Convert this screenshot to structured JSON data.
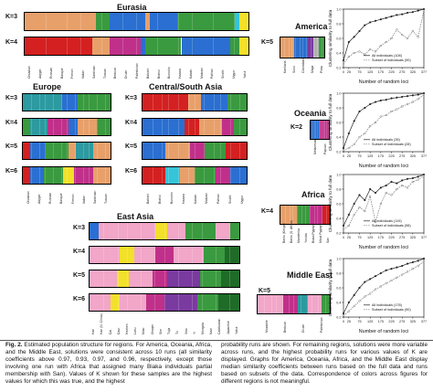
{
  "colors": {
    "orange": "#e8a06a",
    "blue": "#2a6fd1",
    "green": "#3a9a3f",
    "magenta": "#c0308a",
    "red": "#d42020",
    "yellow": "#f2e02a",
    "cyan": "#35c4d8",
    "pink": "#f2a6c8",
    "purple": "#7a3aa0",
    "darkgreen": "#1f6b28",
    "teal": "#2c9aa0",
    "navy": "#224488",
    "grey": "#b0b0b0"
  },
  "eurasia": {
    "title": "Eurasia",
    "k_labels": [
      "K=3",
      "K=4"
    ],
    "populations": [
      "Orcadian",
      "Adygei",
      "Russian",
      "Basque",
      "French",
      "Italian",
      "Sardinian",
      "Tuscan",
      "Bedouin",
      "Druze",
      "Palestinian",
      "Balochi",
      "Brahui",
      "Burusho",
      "Hazara",
      "Kalash",
      "Makrani",
      "Pathan",
      "Sindhi",
      "Uygur",
      "Yakut"
    ]
  },
  "europe": {
    "title": "Europe",
    "k_labels": [
      "K=3",
      "K=4",
      "K=5",
      "K=6"
    ],
    "populations": [
      "Orcadian",
      "Adygei",
      "Russian",
      "Basque",
      "French",
      "Italian",
      "Sardinian",
      "Tuscan"
    ]
  },
  "csasia": {
    "title": "Central/South Asia",
    "k_labels": [
      "K=3",
      "K=4",
      "K=5",
      "K=6"
    ],
    "populations": [
      "Balochi",
      "Brahui",
      "Burusho",
      "Hazara",
      "Kalash",
      "Makrani",
      "Pathan",
      "Sindhi",
      "Uygur"
    ]
  },
  "eastasia": {
    "title": "East Asia",
    "k_labels": [
      "K=3",
      "K=4",
      "K=5",
      "K=6"
    ],
    "populations": [
      "Han",
      "Han (N. China)",
      "Dai",
      "Daur",
      "Hezhen",
      "Lahu",
      "Miao",
      "Oroqen",
      "She",
      "Tujia",
      "Tu",
      "Xibo",
      "Yi",
      "Mongola",
      "Naxi",
      "Cambodian",
      "Japanese",
      "Yakut"
    ]
  },
  "america": {
    "title": "America",
    "k_label": "K=5",
    "populations": [
      "Karitiana",
      "Surui",
      "Colombian",
      "Maya",
      "Pima"
    ],
    "chart": {
      "legend": [
        "All individuals (108)",
        "Subset of individuals (90)"
      ]
    }
  },
  "oceania": {
    "title": "Oceania",
    "k_label": "K=2",
    "populations": [
      "Melanesian",
      "Papuan"
    ],
    "chart": {
      "legend": [
        "All individuals (39)",
        "Subset of individuals (28)"
      ]
    }
  },
  "africa": {
    "title": "Africa",
    "k_label": "K=4",
    "populations": [
      "Bantu (Kenya)",
      "Bantu (S. Africa)",
      "Mandenka",
      "Yoruba",
      "Biaka Pygmy",
      "Mbuti Pygmy",
      "San"
    ],
    "chart": {
      "legend": [
        "All individuals (119)",
        "Subset of individuals (98)"
      ]
    }
  },
  "mideast": {
    "title": "Middle East",
    "k_label": "K=5",
    "populations": [
      "Mozabite",
      "Bedouin",
      "Druze",
      "Palestinian"
    ],
    "chart": {
      "legend": [
        "All individuals (178)",
        "Subset of individuals (90)"
      ]
    }
  },
  "chart_axes": {
    "ylabel": "Clustering similarity to full data",
    "xlabel": "Number of random loci",
    "xticks": [
      "0",
      "25",
      "75",
      "125",
      "175",
      "225",
      "275",
      "325",
      "377"
    ],
    "yticks": [
      "0.2",
      "0.4",
      "0.6",
      "0.8",
      "1.0"
    ]
  },
  "chart_data": [
    {
      "type": "line",
      "title": "America",
      "x": [
        0,
        25,
        50,
        75,
        100,
        125,
        150,
        175,
        200,
        225,
        250,
        275,
        300,
        325,
        350,
        377
      ],
      "series": [
        {
          "name": "All individuals (108)",
          "values": [
            0.3,
            0.55,
            0.62,
            0.7,
            0.78,
            0.82,
            0.84,
            0.86,
            0.88,
            0.9,
            0.92,
            0.93,
            0.95,
            0.96,
            0.98,
            1.0
          ]
        },
        {
          "name": "Subset of individuals (90)",
          "values": [
            0.25,
            0.35,
            0.4,
            0.42,
            0.38,
            0.45,
            0.42,
            0.5,
            0.55,
            0.6,
            0.72,
            0.65,
            0.6,
            0.7,
            0.62,
            0.98
          ]
        }
      ],
      "xlabel": "Number of random loci",
      "ylabel": "Clustering similarity to full data",
      "ylim": [
        0.2,
        1.0
      ]
    },
    {
      "type": "line",
      "title": "Oceania",
      "x": [
        0,
        25,
        50,
        75,
        100,
        125,
        150,
        175,
        200,
        225,
        250,
        275,
        300,
        325,
        350,
        377
      ],
      "series": [
        {
          "name": "All individuals (39)",
          "values": [
            0.25,
            0.45,
            0.62,
            0.75,
            0.8,
            0.85,
            0.88,
            0.9,
            0.91,
            0.93,
            0.94,
            0.95,
            0.96,
            0.97,
            0.98,
            1.0
          ]
        },
        {
          "name": "Subset of individuals (28)",
          "values": [
            0.22,
            0.25,
            0.3,
            0.4,
            0.45,
            0.55,
            0.6,
            0.68,
            0.7,
            0.75,
            0.78,
            0.82,
            0.85,
            0.88,
            0.92,
            0.98
          ]
        }
      ],
      "xlabel": "Number of random loci",
      "ylabel": "Clustering similarity to full data",
      "ylim": [
        0.2,
        1.0
      ]
    },
    {
      "type": "line",
      "title": "Africa",
      "x": [
        0,
        25,
        50,
        75,
        100,
        125,
        150,
        175,
        200,
        225,
        250,
        275,
        300,
        325,
        350,
        377
      ],
      "series": [
        {
          "name": "All individuals (119)",
          "values": [
            0.3,
            0.45,
            0.6,
            0.72,
            0.65,
            0.8,
            0.75,
            0.82,
            0.85,
            0.9,
            0.88,
            0.92,
            0.94,
            0.95,
            0.97,
            1.0
          ]
        },
        {
          "name": "Subset of individuals (98)",
          "values": [
            0.25,
            0.3,
            0.45,
            0.55,
            0.5,
            0.7,
            0.35,
            0.6,
            0.75,
            0.72,
            0.8,
            0.85,
            0.82,
            0.9,
            0.93,
            0.98
          ]
        }
      ],
      "xlabel": "Number of random loci",
      "ylabel": "Clustering similarity to full data",
      "ylim": [
        0.2,
        1.0
      ]
    },
    {
      "type": "line",
      "title": "Middle East",
      "x": [
        0,
        25,
        50,
        75,
        100,
        125,
        150,
        175,
        200,
        225,
        250,
        275,
        300,
        325,
        350,
        377
      ],
      "series": [
        {
          "name": "All individuals (178)",
          "values": [
            0.25,
            0.4,
            0.5,
            0.6,
            0.68,
            0.72,
            0.76,
            0.8,
            0.84,
            0.86,
            0.88,
            0.9,
            0.93,
            0.95,
            0.97,
            1.0
          ]
        },
        {
          "name": "Subset of individuals (90)",
          "values": [
            0.22,
            0.28,
            0.35,
            0.42,
            0.48,
            0.52,
            0.58,
            0.62,
            0.66,
            0.7,
            0.74,
            0.78,
            0.82,
            0.86,
            0.9,
            0.96
          ]
        }
      ],
      "xlabel": "Number of random loci",
      "ylabel": "Clustering similarity to full data",
      "ylim": [
        0.2,
        1.0
      ]
    }
  ],
  "caption": {
    "fig_label": "Fig. 2.",
    "left_text": "Estimated population structure for regions. For America, Oceania, Africa, and the Middle East, solutions were consistent across 10 runs (all similarity coefficients above 0.97, 0.93, 0.97, and 0.96, respectively, except those involving one run with Africa that assigned many Biaka individuals partial membership with San). Values of K shown for these samples are the highest values for which this was true, and the highest",
    "right_text": "probability runs are shown. For remaining regions, solutions were more variable across runs, and the highest probability runs for various values of K are displayed. Graphs for America, Oceania, Africa, and the Middle East display median similarity coefficients between runs based on the full data and runs based on subsets of the data. Correspondence of colors across figures for different regions is not meaningful."
  }
}
